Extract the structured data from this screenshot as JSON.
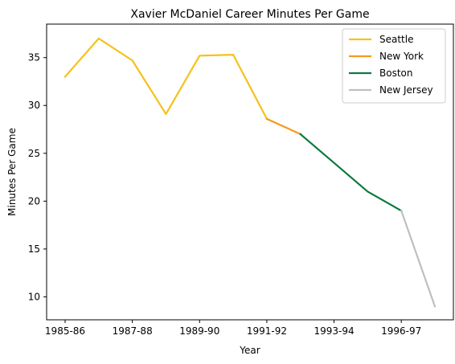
{
  "chart_data": {
    "type": "line",
    "title": "Xavier McDaniel Career Minutes Per Game",
    "xlabel": "Year",
    "ylabel": "Minutes Per Game",
    "x_tick_labels": [
      "1985-86",
      "1987-88",
      "1989-90",
      "1991-92",
      "1993-94",
      "1996-97"
    ],
    "x_tick_index": [
      0,
      2,
      4,
      6,
      8,
      10
    ],
    "xlim": [
      -0.55,
      11.55
    ],
    "ylim": [
      7.6,
      38.5
    ],
    "yticks": [
      10,
      15,
      20,
      25,
      30,
      35
    ],
    "legend_position": "top-right",
    "grid": false,
    "series": [
      {
        "name": "Seattle",
        "color": "#f5c219",
        "points": [
          [
            0,
            33.0
          ],
          [
            1,
            37.0
          ],
          [
            2,
            34.7
          ],
          [
            3,
            29.1
          ],
          [
            4,
            35.2
          ],
          [
            5,
            35.3
          ],
          [
            6,
            28.6
          ]
        ]
      },
      {
        "name": "New York",
        "color": "#f59b1b",
        "points": [
          [
            6,
            28.6
          ],
          [
            7,
            27.0
          ]
        ]
      },
      {
        "name": "Boston",
        "color": "#0c7a3c",
        "points": [
          [
            7,
            27.0
          ],
          [
            8,
            24.0
          ],
          [
            9,
            21.0
          ],
          [
            10,
            19.0
          ]
        ]
      },
      {
        "name": "New Jersey",
        "color": "#bfbfbf",
        "points": [
          [
            10,
            19.0
          ],
          [
            11,
            9.0
          ]
        ]
      }
    ]
  }
}
